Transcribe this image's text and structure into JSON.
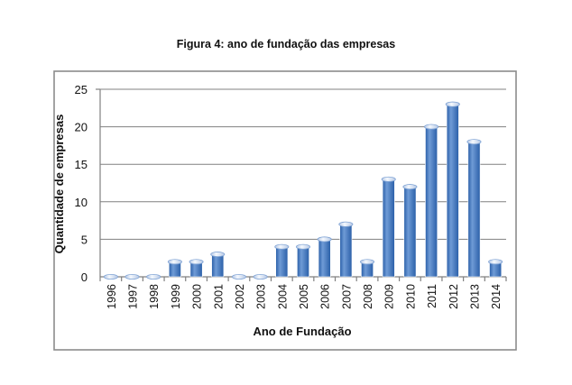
{
  "figure_title": "Figura 4: ano de fundação das empresas",
  "colors": {
    "bar_dark": "#2a5fa8",
    "bar_light": "#6f9bd6",
    "bar_cap": "#e3ecf8",
    "grid": "#808080"
  },
  "chart_data": {
    "type": "bar",
    "title": "Figura 4: ano de fundação das empresas",
    "xlabel": "Ano de Fundação",
    "ylabel": "Quantidade de empresas",
    "categories": [
      "1996",
      "1997",
      "1998",
      "1999",
      "2000",
      "2001",
      "2002",
      "2003",
      "2004",
      "2005",
      "2006",
      "2007",
      "2008",
      "2009",
      "2010",
      "2011",
      "2012",
      "2013",
      "2014"
    ],
    "values": [
      0,
      0,
      0,
      2,
      2,
      3,
      0,
      0,
      4,
      4,
      5,
      7,
      2,
      13,
      12,
      20,
      23,
      18,
      2
    ],
    "ylim": [
      0,
      25
    ],
    "yticks": [
      0,
      5,
      10,
      15,
      20,
      25
    ],
    "grid": true,
    "legend": "none"
  }
}
